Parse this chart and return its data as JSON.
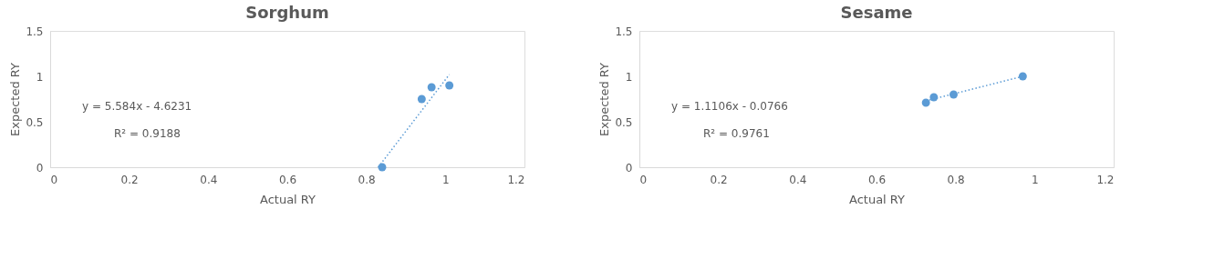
{
  "chart_data": [
    {
      "type": "scatter",
      "title": "Sorghum",
      "xlabel": "Actual RY",
      "ylabel": "Expected RY",
      "x": [
        0.84,
        0.94,
        0.965,
        1.01
      ],
      "values": [
        0,
        0.75,
        0.88,
        0.9
      ],
      "color": "#5b9bd5",
      "marker": "circle",
      "series": [
        {
          "type": "line",
          "color": "#5b9bd5",
          "line_style": "dotted",
          "marker": "none",
          "x": [
            0.83,
            1.01
          ],
          "values": [
            0,
            1.02
          ]
        }
      ],
      "xlim": [
        0,
        1.2
      ],
      "xticks": [
        0,
        0.2,
        0.4,
        0.6,
        0.8,
        1,
        1.2
      ],
      "ylim": [
        0,
        1.5
      ],
      "yticks": [
        0,
        0.5,
        1,
        1.5
      ],
      "grid": false,
      "annotations": [
        "y = 5.584x - 4.6231",
        "R² = 0.9188"
      ]
    },
    {
      "type": "scatter",
      "title": "Sesame",
      "xlabel": "Actual RY",
      "ylabel": "Expected RY",
      "x": [
        0.725,
        0.745,
        0.795,
        0.97
      ],
      "values": [
        0.71,
        0.77,
        0.8,
        1.0
      ],
      "color": "#5b9bd5",
      "marker": "circle",
      "series": [
        {
          "type": "line",
          "color": "#5b9bd5",
          "line_style": "dotted",
          "marker": "none",
          "x": [
            0.725,
            0.97
          ],
          "values": [
            0.73,
            1.0
          ]
        }
      ],
      "xlim": [
        0,
        1.2
      ],
      "xticks": [
        0,
        0.2,
        0.4,
        0.6,
        0.8,
        1,
        1.2
      ],
      "ylim": [
        0,
        1.5
      ],
      "yticks": [
        0,
        0.5,
        1,
        1.5
      ],
      "grid": false,
      "annotations": [
        "y = 1.1106x - 0.0766",
        "R² = 0.9761"
      ]
    }
  ]
}
